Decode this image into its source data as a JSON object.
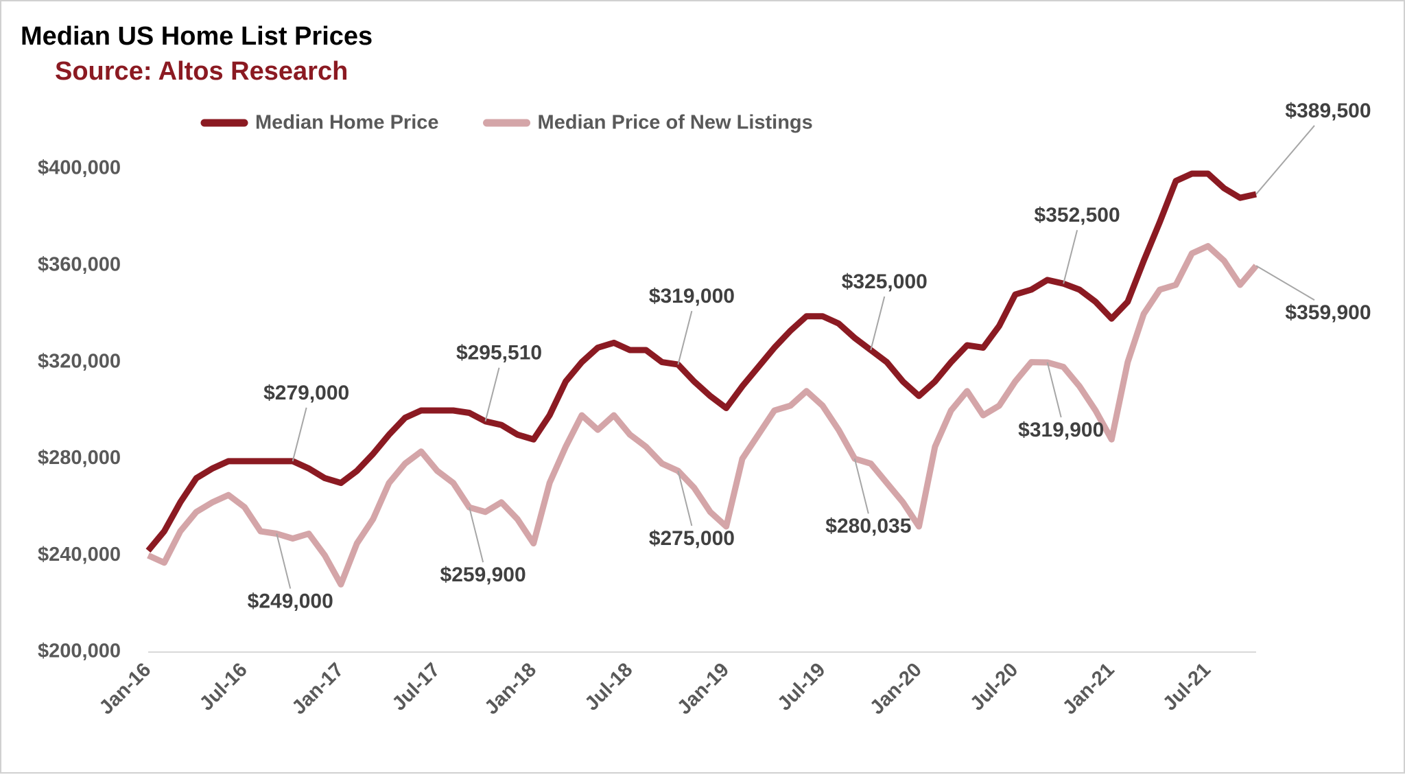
{
  "chart_data": {
    "type": "line",
    "title": "Median US Home List Prices",
    "subtitle": "Source: Altos Research",
    "legend": "top",
    "grid": false,
    "categories": [
      "Jan-16",
      null,
      null,
      null,
      null,
      null,
      "Jul-16",
      null,
      null,
      null,
      null,
      null,
      "Jan-17",
      null,
      null,
      null,
      null,
      null,
      "Jul-17",
      null,
      null,
      null,
      null,
      null,
      "Jan-18",
      null,
      null,
      null,
      null,
      null,
      "Jul-18",
      null,
      null,
      null,
      null,
      null,
      "Jan-19",
      null,
      null,
      null,
      null,
      null,
      "Jul-19",
      null,
      null,
      null,
      null,
      null,
      "Jan-20",
      null,
      null,
      null,
      null,
      null,
      "Jul-20",
      null,
      null,
      null,
      null,
      null,
      "Jan-21",
      null,
      null,
      null,
      null,
      null,
      "Jul-21",
      null,
      null,
      null
    ],
    "ylim": [
      200000,
      400000
    ],
    "yticks": [
      {
        "value": 200000,
        "label": "$200,000"
      },
      {
        "value": 240000,
        "label": "$240,000"
      },
      {
        "value": 280000,
        "label": "$280,000"
      },
      {
        "value": 320000,
        "label": "$320,000"
      },
      {
        "value": 360000,
        "label": "$360,000"
      },
      {
        "value": 400000,
        "label": "$400,000"
      }
    ],
    "series": [
      {
        "name": "Median Home Price",
        "color": "#8b1a22",
        "values": [
          242000,
          250000,
          262000,
          272000,
          276000,
          279000,
          279000,
          279000,
          279000,
          279000,
          276000,
          272000,
          270000,
          275000,
          282000,
          290000,
          297000,
          300000,
          300000,
          300000,
          299000,
          295510,
          294000,
          290000,
          288000,
          298000,
          312000,
          320000,
          326000,
          328000,
          325000,
          325000,
          320000,
          319000,
          312000,
          306000,
          301000,
          310000,
          318000,
          326000,
          333000,
          339000,
          339000,
          336000,
          330000,
          325000,
          320000,
          312000,
          306000,
          312000,
          320000,
          327000,
          326000,
          335000,
          348000,
          350000,
          354000,
          352500,
          350000,
          345000,
          338000,
          345000,
          362000,
          378000,
          395000,
          398000,
          398000,
          392000,
          388000,
          389500
        ],
        "value_labels": [
          null,
          null,
          null,
          null,
          null,
          null,
          null,
          null,
          null,
          "$279,000",
          null,
          null,
          null,
          null,
          null,
          null,
          null,
          null,
          null,
          null,
          null,
          "$295,510",
          null,
          null,
          null,
          null,
          null,
          null,
          null,
          null,
          null,
          null,
          null,
          "$319,000",
          null,
          null,
          null,
          null,
          null,
          null,
          null,
          null,
          null,
          null,
          null,
          "$325,000",
          null,
          null,
          null,
          null,
          null,
          null,
          null,
          null,
          null,
          null,
          null,
          "$352,500",
          null,
          null,
          null,
          null,
          null,
          null,
          null,
          null,
          null,
          null,
          null,
          "$389,500"
        ]
      },
      {
        "name": "Median Price of New Listings",
        "color": "#d4a5a8",
        "values": [
          240000,
          237000,
          250000,
          258000,
          262000,
          265000,
          260000,
          250000,
          249000,
          247000,
          249000,
          240000,
          228000,
          245000,
          255000,
          270000,
          278000,
          283000,
          275000,
          270000,
          259900,
          258000,
          262000,
          255000,
          245000,
          270000,
          285000,
          298000,
          292000,
          298000,
          290000,
          285000,
          278000,
          275000,
          268000,
          258000,
          252000,
          280000,
          290000,
          300000,
          302000,
          308000,
          302000,
          292000,
          280035,
          278000,
          270000,
          262000,
          252000,
          285000,
          300000,
          308000,
          298000,
          302000,
          312000,
          320000,
          319900,
          318000,
          310000,
          300000,
          288000,
          320000,
          340000,
          350000,
          352000,
          365000,
          368000,
          362000,
          352000,
          359900
        ],
        "value_labels": [
          null,
          null,
          null,
          null,
          null,
          null,
          null,
          null,
          "$249,000",
          null,
          null,
          null,
          null,
          null,
          null,
          null,
          null,
          null,
          null,
          null,
          "$259,900",
          null,
          null,
          null,
          null,
          null,
          null,
          null,
          null,
          null,
          null,
          null,
          null,
          "$275,000",
          null,
          null,
          null,
          null,
          null,
          null,
          null,
          null,
          null,
          null,
          "$280,035",
          null,
          null,
          null,
          null,
          null,
          null,
          null,
          null,
          null,
          null,
          null,
          "$319,900",
          null,
          null,
          null,
          null,
          null,
          null,
          null,
          null,
          null,
          null,
          null,
          null,
          "$359,900"
        ]
      }
    ]
  }
}
